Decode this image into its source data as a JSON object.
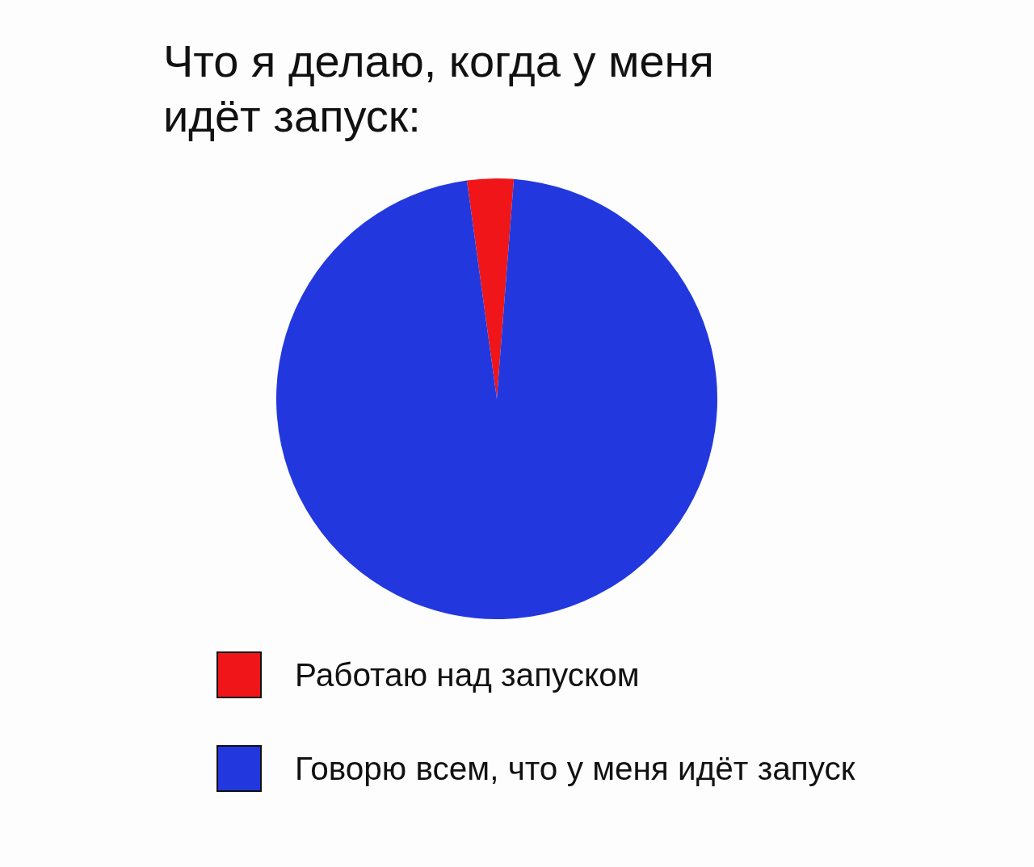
{
  "chart_data": {
    "type": "pie",
    "title": "Что я делаю, когда у меня идёт запуск:",
    "categories": [
      "Работаю над запуском",
      "Говорю всем, что у меня идёт запуск"
    ],
    "values": [
      3.4,
      96.6
    ],
    "colors": [
      "#f01519",
      "#2238de"
    ],
    "legend": "bottom"
  }
}
